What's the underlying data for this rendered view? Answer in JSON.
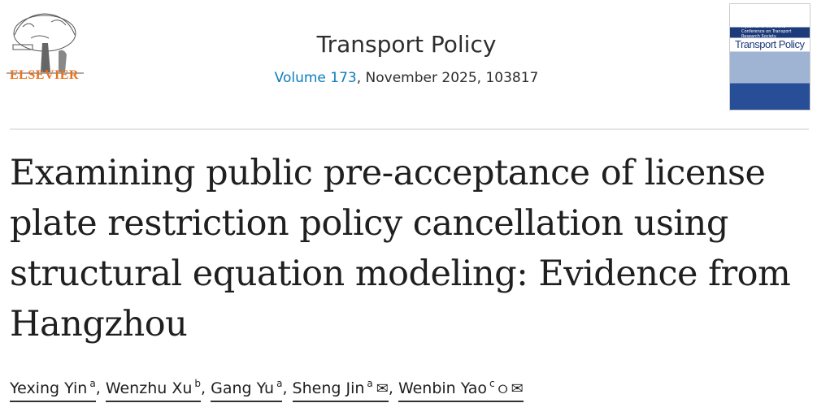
{
  "publisher": {
    "logo_text": "ELSEVIER"
  },
  "journal": {
    "name": "Transport Policy",
    "volume_link": "Volume 173",
    "issue_rest": ", November 2025, 103817"
  },
  "cover": {
    "title": "Transport Policy",
    "subtitle": "A Journal of the World Conference on Transport Research Society"
  },
  "article": {
    "title": "Examining public pre-acceptance of license plate restriction policy cancellation using structural equation modeling: Evidence from Hangzhou"
  },
  "authors": [
    {
      "name": "Yexing Yin",
      "aff": "a",
      "sep": ", "
    },
    {
      "name": "Wenzhu Xu",
      "aff": "b",
      "sep": ", "
    },
    {
      "name": "Gang Yu",
      "aff": "a",
      "sep": ", "
    },
    {
      "name": "Sheng Jin",
      "aff": "a",
      "sep": ", ",
      "icons": [
        "email-icon"
      ]
    },
    {
      "name": "Wenbin Yao",
      "aff": "c",
      "sep": "",
      "icons": [
        "person-icon",
        "email-icon"
      ]
    }
  ]
}
